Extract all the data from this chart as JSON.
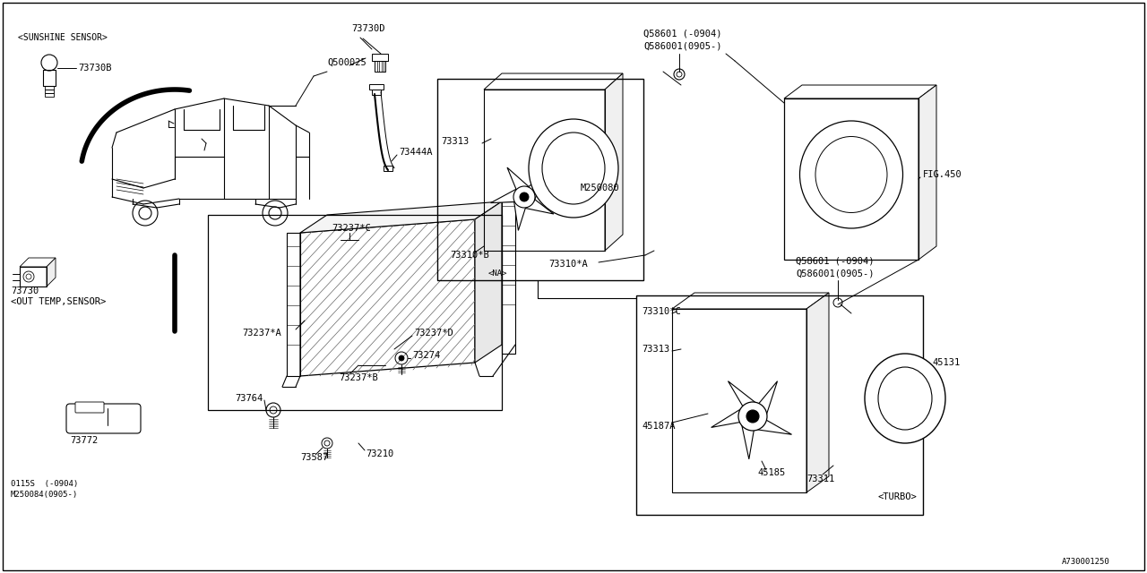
{
  "bg_color": "#ffffff",
  "line_color": "#000000",
  "font_family": "monospace",
  "fs": 7.5,
  "fs_sm": 6.5,
  "labels": {
    "sunshine_sensor": "<SUNSHINE SENSOR>",
    "73730B": "73730B",
    "73730D": "73730D",
    "Q500025": "Q500025",
    "73444A": "73444A",
    "73730": "73730",
    "out_temp": "<OUT TEMP,SENSOR>",
    "73772": "73772",
    "73313_na": "73313",
    "M250080": "M250080",
    "73310B": "73310*B",
    "NA": "<NA>",
    "Q58601_top1": "Q58601 (-0904)",
    "Q586001_top1": "Q586001(0905-)",
    "FIG450": "FIG.450",
    "Q58601_top2": "Q58601 (-0904)",
    "Q586001_top2": "Q586001(0905-)",
    "73237C": "73237*C",
    "73237A": "73237*A",
    "73237D": "73237*D",
    "73237B": "73237*B",
    "73274": "73274",
    "73764": "73764",
    "73587": "73587",
    "73210": "73210",
    "0115S": "0115S  (-0904)",
    "M250084": "M250084(0905-)",
    "73310A": "73310*A",
    "73310C": "73310*C",
    "73313_turbo": "73313",
    "45131": "45131",
    "45187A": "45187A",
    "45185": "45185",
    "73311": "73311",
    "TURBO": "<TURBO>",
    "code": "A730001250"
  }
}
